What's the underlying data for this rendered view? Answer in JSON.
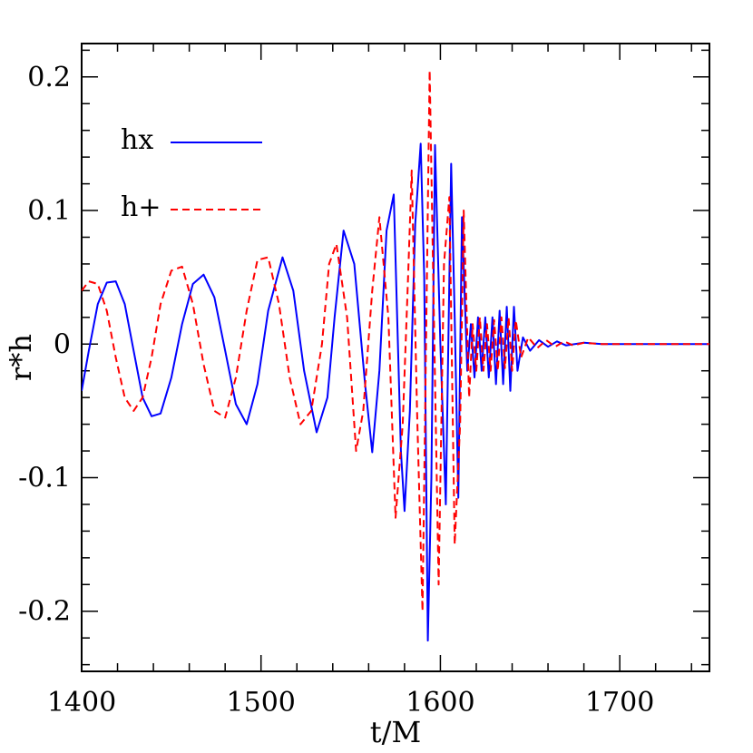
{
  "chart_data": {
    "type": "line",
    "xlabel": "t/M",
    "ylabel": "r*h",
    "xlim": [
      1400,
      1750
    ],
    "ylim": [
      -0.245,
      0.225
    ],
    "x_ticks": [
      1400,
      1500,
      1600,
      1700
    ],
    "x_tick_labels": [
      "1400",
      "1500",
      "1600",
      "1700"
    ],
    "y_ticks": [
      -0.2,
      -0.1,
      0,
      0.1,
      0.2
    ],
    "y_tick_labels": [
      "-0.2",
      "-0.1",
      "0",
      "0.1",
      "0.2"
    ],
    "grid": false,
    "legend_position": "top-left",
    "series": [
      {
        "name": "hx",
        "color": "#0000ff",
        "style": "solid",
        "x": [
          1400,
          1404,
          1409,
          1414,
          1419,
          1424,
          1429,
          1434,
          1439,
          1444,
          1450,
          1456,
          1462,
          1468,
          1474,
          1480,
          1486,
          1492,
          1498,
          1504,
          1512,
          1518,
          1524,
          1531,
          1537,
          1541,
          1546,
          1552,
          1558,
          1562,
          1566,
          1570,
          1574,
          1578,
          1580,
          1583,
          1586,
          1589,
          1591,
          1593,
          1595,
          1597,
          1600,
          1603,
          1606,
          1608,
          1610,
          1612,
          1615,
          1617,
          1619,
          1621,
          1623,
          1625,
          1627,
          1629,
          1631,
          1633,
          1635,
          1637,
          1639,
          1641,
          1643,
          1646,
          1650,
          1655,
          1660,
          1665,
          1670,
          1680,
          1690,
          1700,
          1720,
          1750
        ],
        "y": [
          -0.035,
          -0.005,
          0.03,
          0.046,
          0.047,
          0.03,
          -0.005,
          -0.04,
          -0.054,
          -0.052,
          -0.025,
          0.015,
          0.045,
          0.052,
          0.035,
          -0.005,
          -0.045,
          -0.06,
          -0.03,
          0.025,
          0.065,
          0.04,
          -0.02,
          -0.066,
          -0.04,
          0.02,
          0.085,
          0.06,
          -0.03,
          -0.081,
          -0.02,
          0.085,
          0.112,
          -0.08,
          -0.125,
          -0.05,
          0.09,
          0.15,
          0.05,
          -0.222,
          -0.1,
          0.149,
          0.0,
          -0.12,
          0.135,
          0.02,
          -0.115,
          0.095,
          -0.02,
          0.015,
          -0.025,
          0.02,
          -0.02,
          0.02,
          -0.025,
          0.02,
          -0.03,
          0.025,
          -0.03,
          0.028,
          -0.035,
          0.028,
          -0.02,
          0.005,
          -0.005,
          0.003,
          -0.002,
          0.002,
          -0.001,
          0.001,
          0.0,
          0.0,
          0.0,
          0.0
        ]
      },
      {
        "name": "h+",
        "color": "#ff0000",
        "style": "dashed",
        "x": [
          1400,
          1404,
          1409,
          1414,
          1419,
          1424,
          1429,
          1434,
          1439,
          1444,
          1450,
          1456,
          1462,
          1468,
          1474,
          1480,
          1486,
          1492,
          1498,
          1504,
          1510,
          1516,
          1522,
          1528,
          1534,
          1538,
          1542,
          1548,
          1553,
          1557,
          1562,
          1566,
          1571,
          1575,
          1579,
          1582,
          1584,
          1587,
          1590,
          1592,
          1594,
          1596,
          1599,
          1602,
          1605,
          1608,
          1611,
          1613,
          1616,
          1618,
          1620,
          1622,
          1624,
          1626,
          1628,
          1630,
          1632,
          1634,
          1636,
          1638,
          1640,
          1642,
          1645,
          1649,
          1654,
          1659,
          1664,
          1669,
          1674,
          1680,
          1690,
          1700,
          1720,
          1750
        ],
        "y": [
          0.04,
          0.047,
          0.045,
          0.025,
          -0.01,
          -0.04,
          -0.05,
          -0.04,
          -0.01,
          0.03,
          0.055,
          0.058,
          0.03,
          -0.015,
          -0.05,
          -0.055,
          -0.025,
          0.025,
          0.063,
          0.065,
          0.03,
          -0.025,
          -0.06,
          -0.05,
          0.0,
          0.06,
          0.075,
          0.02,
          -0.08,
          -0.05,
          0.04,
          0.095,
          0.02,
          -0.13,
          -0.06,
          0.05,
          0.13,
          -0.05,
          -0.2,
          0.0,
          0.205,
          0.05,
          -0.18,
          0.06,
          0.11,
          -0.15,
          -0.06,
          0.1,
          -0.04,
          0.015,
          -0.02,
          0.02,
          -0.02,
          0.015,
          -0.02,
          0.018,
          -0.02,
          0.02,
          -0.018,
          0.02,
          -0.02,
          0.018,
          -0.01,
          0.005,
          -0.003,
          0.003,
          -0.002,
          0.002,
          -0.001,
          0.001,
          0.0,
          0.0,
          0.0,
          0.0
        ]
      }
    ]
  }
}
